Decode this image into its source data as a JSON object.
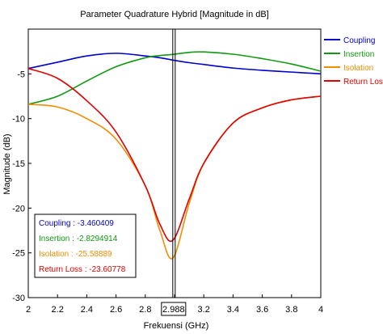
{
  "chart_data": {
    "type": "line",
    "title": "Parameter Quadrature Hybrid [Magnitude in dB]",
    "xlabel": "Frekuensi (GHz)",
    "ylabel": "Magnitude (dB)",
    "xlim": [
      2,
      4
    ],
    "ylim": [
      -30,
      0
    ],
    "x_ticks": [
      "2",
      "2.2",
      "2.4",
      "2.6",
      "2.8",
      "",
      "3.2",
      "3.4",
      "3.6",
      "3.8",
      "4"
    ],
    "y_ticks": [
      "-5",
      "-10",
      "-15",
      "-20",
      "-25",
      "-30"
    ],
    "grid": false,
    "legend_position": "top-right",
    "marker": {
      "x": 2.988,
      "x_label": "2.988"
    },
    "x": [
      2.0,
      2.2,
      2.4,
      2.6,
      2.8,
      2.9,
      2.988,
      3.1,
      3.2,
      3.4,
      3.6,
      3.8,
      4.0
    ],
    "series": [
      {
        "name": "Coupling",
        "color": "#0000cc",
        "values": [
          -4.4,
          -3.7,
          -3.0,
          -2.7,
          -3.0,
          -3.2,
          -3.46,
          -3.75,
          -3.95,
          -4.35,
          -4.6,
          -4.8,
          -5.0
        ]
      },
      {
        "name": "Insertion",
        "color": "#119911",
        "values": [
          -8.4,
          -7.5,
          -5.8,
          -4.2,
          -3.2,
          -2.95,
          -2.83,
          -2.6,
          -2.55,
          -2.8,
          -3.3,
          -3.9,
          -4.7
        ]
      },
      {
        "name": "Isolation",
        "color": "#f28c00",
        "values": [
          -8.4,
          -8.7,
          -10.0,
          -12.3,
          -17.5,
          -22.5,
          -25.59,
          -19.5,
          -15.0,
          -10.5,
          -8.8,
          -7.9,
          -7.5
        ]
      },
      {
        "name": "Return Loss",
        "color": "#e00000",
        "values": [
          -4.4,
          -5.5,
          -8.0,
          -11.5,
          -17.5,
          -21.8,
          -23.61,
          -19.0,
          -15.0,
          -10.5,
          -8.8,
          -7.9,
          -7.5
        ]
      }
    ]
  },
  "readout": [
    {
      "label": "Coupling : -3.460409",
      "color": "#0000cc"
    },
    {
      "label": "Insertion : -2.8294914",
      "color": "#119911"
    },
    {
      "label": "Isolation : -25.58889",
      "color": "#f28c00"
    },
    {
      "label": "Return Loss : -23.60778",
      "color": "#e00000"
    }
  ]
}
